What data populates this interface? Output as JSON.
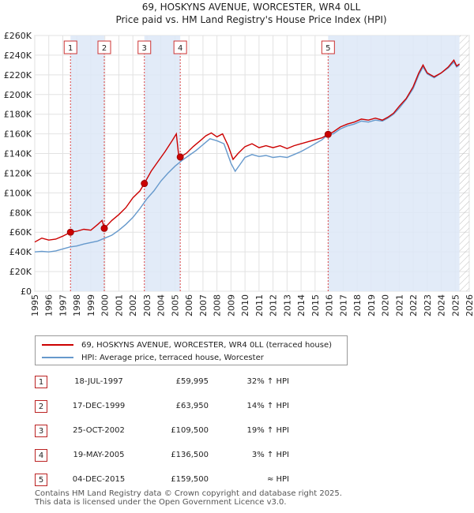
{
  "chart_data": {
    "type": "line",
    "title": "69, HOSKYNS AVENUE, WORCESTER, WR4 0LL",
    "subtitle": "Price paid vs. HM Land Registry's House Price Index (HPI)",
    "xlim": [
      1995,
      2026
    ],
    "ylim": [
      0,
      260000
    ],
    "x_ticks": [
      "1995",
      "1996",
      "1997",
      "1998",
      "1999",
      "2000",
      "2001",
      "2002",
      "2003",
      "2004",
      "2005",
      "2006",
      "2007",
      "2008",
      "2009",
      "2010",
      "2011",
      "2012",
      "2013",
      "2014",
      "2015",
      "2016",
      "2017",
      "2018",
      "2019",
      "2020",
      "2021",
      "2022",
      "2023",
      "2024",
      "2025",
      "2026"
    ],
    "y_ticks": [
      {
        "v": 0,
        "label": "£0"
      },
      {
        "v": 20000,
        "label": "£20K"
      },
      {
        "v": 40000,
        "label": "£40K"
      },
      {
        "v": 60000,
        "label": "£60K"
      },
      {
        "v": 80000,
        "label": "£80K"
      },
      {
        "v": 100000,
        "label": "£100K"
      },
      {
        "v": 120000,
        "label": "£120K"
      },
      {
        "v": 140000,
        "label": "£140K"
      },
      {
        "v": 160000,
        "label": "£160K"
      },
      {
        "v": 180000,
        "label": "£180K"
      },
      {
        "v": 200000,
        "label": "£200K"
      },
      {
        "v": 220000,
        "label": "£220K"
      },
      {
        "v": 240000,
        "label": "£240K"
      },
      {
        "v": 260000,
        "label": "£260K"
      }
    ],
    "series": [
      {
        "name": "69, HOSKYNS AVENUE, WORCESTER, WR4 0LL (terraced house)",
        "color": "#cc0000",
        "points": [
          [
            1995,
            50000
          ],
          [
            1995.5,
            54000
          ],
          [
            1996,
            52000
          ],
          [
            1996.5,
            53000
          ],
          [
            1997,
            56000
          ],
          [
            1997.55,
            60000
          ],
          [
            1998,
            61000
          ],
          [
            1998.5,
            63000
          ],
          [
            1999,
            62000
          ],
          [
            1999.5,
            68000
          ],
          [
            1999.8,
            72000
          ],
          [
            1999.96,
            63950
          ],
          [
            2000.5,
            72000
          ],
          [
            2001,
            78000
          ],
          [
            2001.5,
            85000
          ],
          [
            2002,
            95000
          ],
          [
            2002.5,
            102000
          ],
          [
            2002.82,
            109500
          ],
          [
            2003.3,
            122000
          ],
          [
            2003.8,
            132000
          ],
          [
            2004.3,
            142000
          ],
          [
            2004.8,
            153000
          ],
          [
            2005.1,
            160000
          ],
          [
            2005.25,
            140000
          ],
          [
            2005.38,
            136500
          ],
          [
            2005.8,
            140000
          ],
          [
            2006.3,
            147000
          ],
          [
            2006.8,
            153000
          ],
          [
            2007.2,
            158000
          ],
          [
            2007.6,
            161000
          ],
          [
            2008,
            157000
          ],
          [
            2008.4,
            160000
          ],
          [
            2008.8,
            148000
          ],
          [
            2009.15,
            134000
          ],
          [
            2009.5,
            140000
          ],
          [
            2010,
            147000
          ],
          [
            2010.5,
            150000
          ],
          [
            2011,
            146000
          ],
          [
            2011.5,
            148000
          ],
          [
            2012,
            146000
          ],
          [
            2012.5,
            148000
          ],
          [
            2013,
            145000
          ],
          [
            2013.5,
            148000
          ],
          [
            2014,
            150000
          ],
          [
            2014.5,
            152000
          ],
          [
            2015,
            154000
          ],
          [
            2015.5,
            156000
          ],
          [
            2015.93,
            159500
          ],
          [
            2016.3,
            162000
          ],
          [
            2016.8,
            167000
          ],
          [
            2017.3,
            170000
          ],
          [
            2017.8,
            172000
          ],
          [
            2018.3,
            175000
          ],
          [
            2018.8,
            174000
          ],
          [
            2019.3,
            176000
          ],
          [
            2019.8,
            174000
          ],
          [
            2020.2,
            177000
          ],
          [
            2020.6,
            181000
          ],
          [
            2021,
            188000
          ],
          [
            2021.5,
            196000
          ],
          [
            2022,
            208000
          ],
          [
            2022.4,
            222000
          ],
          [
            2022.7,
            230000
          ],
          [
            2023,
            222000
          ],
          [
            2023.5,
            218000
          ],
          [
            2024,
            222000
          ],
          [
            2024.5,
            228000
          ],
          [
            2024.9,
            235000
          ],
          [
            2025.1,
            229000
          ],
          [
            2025.3,
            231000
          ]
        ]
      },
      {
        "name": "HPI: Average price, terraced house, Worcester",
        "color": "#6699cc",
        "points": [
          [
            1995,
            40000
          ],
          [
            1995.5,
            40500
          ],
          [
            1996,
            40000
          ],
          [
            1996.5,
            41000
          ],
          [
            1997,
            43000
          ],
          [
            1997.5,
            45000
          ],
          [
            1998,
            46000
          ],
          [
            1998.5,
            48000
          ],
          [
            1999,
            49500
          ],
          [
            1999.5,
            51000
          ],
          [
            2000,
            54000
          ],
          [
            2000.5,
            57000
          ],
          [
            2001,
            62000
          ],
          [
            2001.5,
            68000
          ],
          [
            2002,
            75000
          ],
          [
            2002.5,
            84000
          ],
          [
            2003,
            94000
          ],
          [
            2003.5,
            102000
          ],
          [
            2004,
            112000
          ],
          [
            2004.5,
            120000
          ],
          [
            2005,
            127000
          ],
          [
            2005.5,
            133000
          ],
          [
            2006,
            138000
          ],
          [
            2006.5,
            143000
          ],
          [
            2007,
            149000
          ],
          [
            2007.5,
            155000
          ],
          [
            2008,
            153000
          ],
          [
            2008.5,
            150000
          ],
          [
            2009,
            130000
          ],
          [
            2009.3,
            122000
          ],
          [
            2009.7,
            130000
          ],
          [
            2010,
            136000
          ],
          [
            2010.5,
            139000
          ],
          [
            2011,
            137000
          ],
          [
            2011.5,
            138000
          ],
          [
            2012,
            136000
          ],
          [
            2012.5,
            137000
          ],
          [
            2013,
            136000
          ],
          [
            2013.5,
            139000
          ],
          [
            2014,
            142000
          ],
          [
            2014.5,
            146000
          ],
          [
            2015,
            150000
          ],
          [
            2015.5,
            154000
          ],
          [
            2015.93,
            159500
          ],
          [
            2016.3,
            160000
          ],
          [
            2016.8,
            165000
          ],
          [
            2017.3,
            168000
          ],
          [
            2017.8,
            170000
          ],
          [
            2018.3,
            173000
          ],
          [
            2018.8,
            172000
          ],
          [
            2019.3,
            174000
          ],
          [
            2019.8,
            173000
          ],
          [
            2020.2,
            176000
          ],
          [
            2020.6,
            180000
          ],
          [
            2021,
            186000
          ],
          [
            2021.5,
            195000
          ],
          [
            2022,
            206000
          ],
          [
            2022.4,
            220000
          ],
          [
            2022.7,
            228000
          ],
          [
            2023,
            221000
          ],
          [
            2023.5,
            217000
          ],
          [
            2024,
            222000
          ],
          [
            2024.5,
            227000
          ],
          [
            2024.9,
            233000
          ],
          [
            2025.1,
            228000
          ],
          [
            2025.3,
            230000
          ]
        ]
      }
    ],
    "sales": [
      {
        "num": "1",
        "x": 1997.55,
        "value": 59995
      },
      {
        "num": "2",
        "x": 1999.96,
        "value": 63950
      },
      {
        "num": "3",
        "x": 2002.82,
        "value": 109500
      },
      {
        "num": "4",
        "x": 2005.38,
        "value": 136500
      },
      {
        "num": "5",
        "x": 2015.93,
        "value": 159500
      }
    ],
    "shaded_ranges": [
      [
        1997.55,
        1999.96
      ],
      [
        2002.82,
        2005.38
      ],
      [
        2015.93,
        2025.3
      ]
    ],
    "hatch_from": 2025.3
  },
  "legend": {
    "red_label": "69, HOSKYNS AVENUE, WORCESTER, WR4 0LL (terraced house)",
    "blue_label": "HPI: Average price, terraced house, Worcester"
  },
  "sales_table": [
    {
      "num": "1",
      "date": "18-JUL-1997",
      "price": "£59,995",
      "hpi": "32% ↑ HPI"
    },
    {
      "num": "2",
      "date": "17-DEC-1999",
      "price": "£63,950",
      "hpi": "14% ↑ HPI"
    },
    {
      "num": "3",
      "date": "25-OCT-2002",
      "price": "£109,500",
      "hpi": "19% ↑ HPI"
    },
    {
      "num": "4",
      "date": "19-MAY-2005",
      "price": "£136,500",
      "hpi": "3% ↑ HPI"
    },
    {
      "num": "5",
      "date": "04-DEC-2015",
      "price": "£159,500",
      "hpi": "≈ HPI"
    }
  ],
  "footer": {
    "line1": "Contains HM Land Registry data © Crown copyright and database right 2025.",
    "line2": "This data is licensed under the Open Government Licence v3.0."
  }
}
